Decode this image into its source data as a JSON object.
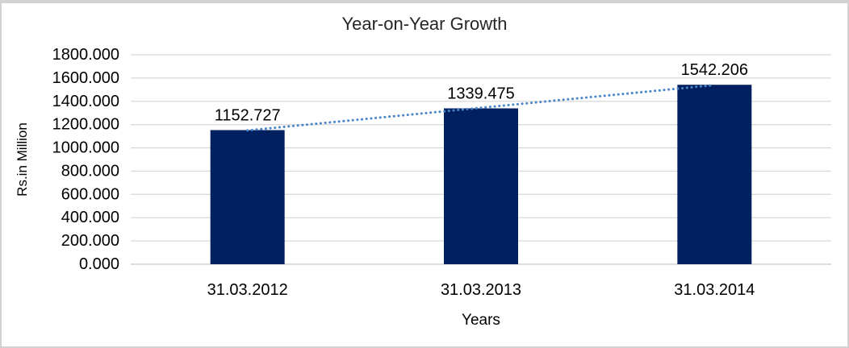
{
  "chart_data": {
    "type": "bar",
    "title": "Year-on-Year Growth",
    "xlabel": "Years",
    "ylabel": "Rs.in Million",
    "categories": [
      "31.03.2012",
      "31.03.2013",
      "31.03.2014"
    ],
    "values": [
      1152.727,
      1339.475,
      1542.206
    ],
    "data_labels": [
      "1152.727",
      "1339.475",
      "1542.206"
    ],
    "ylim": [
      0,
      1800
    ],
    "ytick_step": 200,
    "ytick_format_decimals": 3,
    "grid": "horizontal",
    "legend_position": "none",
    "trendline": {
      "type": "linear",
      "style": "dotted"
    },
    "colors": {
      "bar": "#002060",
      "trendline": "#4a86c8",
      "gridline": "#d9d9d9",
      "axis_line": "#c6c6c6",
      "text": "#000000",
      "title_text": "#262626",
      "frame_border": "#d2d2d2",
      "background": "#ffffff"
    }
  }
}
